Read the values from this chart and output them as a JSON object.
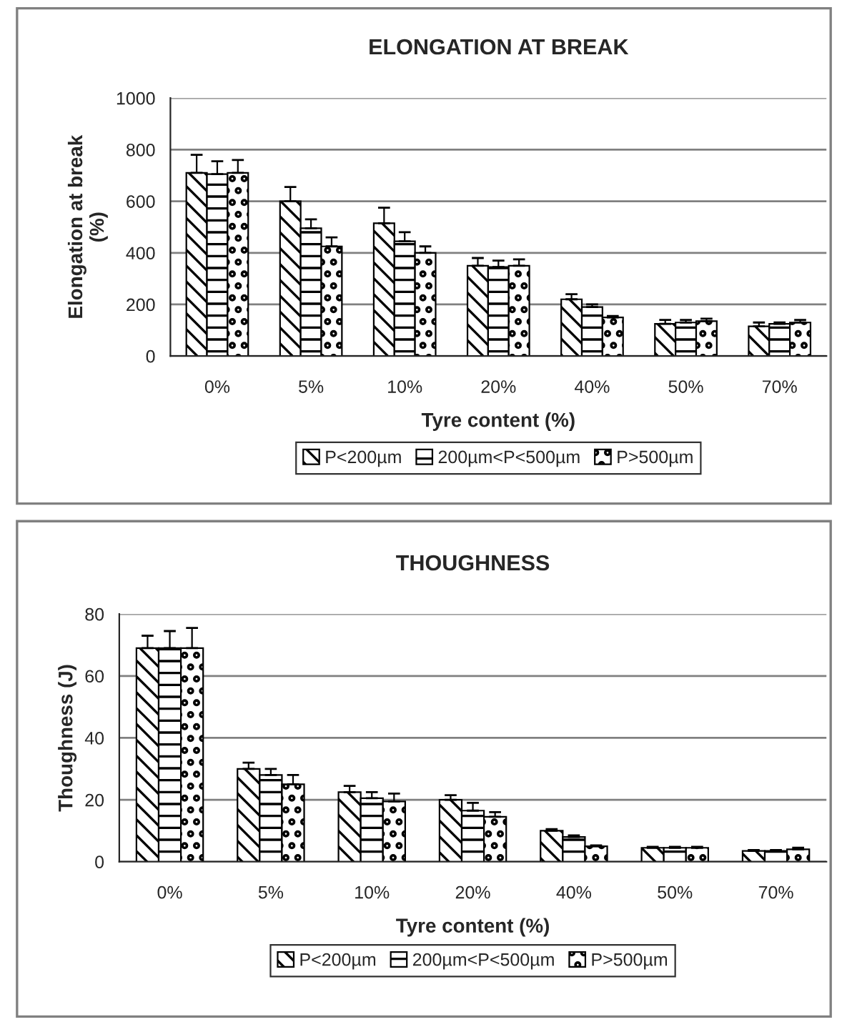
{
  "chart_data": [
    {
      "type": "bar",
      "title": "ELONGATION AT BREAK",
      "xlabel": "Tyre content (%)",
      "ylabel": "Elongation at break\n(%)",
      "categories": [
        "0%",
        "5%",
        "10%",
        "20%",
        "40%",
        "50%",
        "70%"
      ],
      "ylim": [
        0,
        1000
      ],
      "yticks": [
        0,
        200,
        400,
        600,
        800,
        1000
      ],
      "grid": "y",
      "legend": "bottom",
      "series": [
        {
          "name": "P<200µm",
          "color": "#000000",
          "values": [
            710,
            600,
            515,
            350,
            220,
            125,
            115
          ],
          "errors": [
            70,
            55,
            60,
            30,
            20,
            15,
            15
          ]
        },
        {
          "name": "200µm<P<500µm",
          "color": "#000000",
          "values": [
            705,
            495,
            445,
            345,
            190,
            130,
            125
          ],
          "errors": [
            50,
            35,
            35,
            25,
            10,
            10,
            5
          ]
        },
        {
          "name": "P>500µm",
          "color": "#000000",
          "values": [
            710,
            425,
            400,
            350,
            150,
            135,
            130
          ],
          "errors": [
            50,
            35,
            25,
            25,
            5,
            10,
            10
          ]
        }
      ]
    },
    {
      "type": "bar",
      "title": "THOUGHNESS",
      "xlabel": "Tyre content (%)",
      "ylabel": "Thoughness (J)",
      "categories": [
        "0%",
        "5%",
        "10%",
        "20%",
        "40%",
        "50%",
        "70%"
      ],
      "ylim": [
        0,
        80
      ],
      "yticks": [
        0,
        20,
        40,
        60,
        80
      ],
      "grid": "y",
      "legend": "bottom",
      "series": [
        {
          "name": "P<200µm",
          "color": "#000000",
          "values": [
            69,
            30,
            22.5,
            20,
            10,
            4.5,
            3.5
          ],
          "errors": [
            4,
            2,
            2,
            1.5,
            0.5,
            0.3,
            0.3
          ]
        },
        {
          "name": "200µm<P<500µm",
          "color": "#000000",
          "values": [
            69,
            28,
            20.5,
            16.5,
            8,
            4.5,
            3.5
          ],
          "errors": [
            5.5,
            2,
            2,
            2.5,
            0.5,
            0.3,
            0.3
          ]
        },
        {
          "name": "P>500µm",
          "color": "#000000",
          "values": [
            69,
            25,
            19.5,
            14.5,
            5,
            4.5,
            4
          ],
          "errors": [
            6.5,
            3,
            2.5,
            1.5,
            0.3,
            0.3,
            0.5
          ]
        }
      ]
    }
  ]
}
